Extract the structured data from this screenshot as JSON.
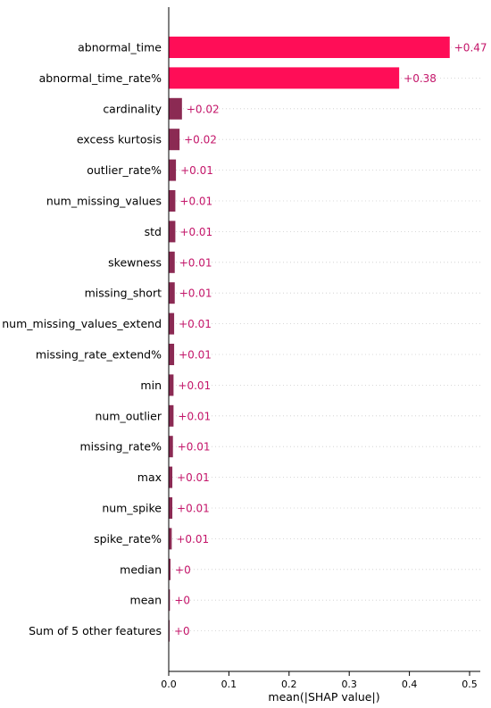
{
  "chart_data": {
    "type": "bar",
    "orientation": "horizontal",
    "categories": [
      "abnormal_time",
      "abnormal_time_rate%",
      "cardinality",
      "excess kurtosis",
      "outlier_rate%",
      "num_missing_values",
      "std",
      "skewness",
      "missing_short",
      "num_missing_values_extend",
      "missing_rate_extend%",
      "min",
      "num_outlier",
      "missing_rate%",
      "max",
      "num_spike",
      "spike_rate%",
      "median",
      "mean",
      "Sum of 5 other features"
    ],
    "values": [
      0.467,
      0.383,
      0.022,
      0.018,
      0.012,
      0.011,
      0.011,
      0.01,
      0.01,
      0.009,
      0.009,
      0.008,
      0.008,
      0.007,
      0.006,
      0.006,
      0.005,
      0.003,
      0.002,
      0.001
    ],
    "value_labels": [
      "+0.47",
      "+0.38",
      "+0.02",
      "+0.02",
      "+0.01",
      "+0.01",
      "+0.01",
      "+0.01",
      "+0.01",
      "+0.01",
      "+0.01",
      "+0.01",
      "+0.01",
      "+0.01",
      "+0.01",
      "+0.01",
      "+0.01",
      "+0",
      "+0",
      "+0"
    ],
    "xlabel": "mean(|SHAP value|)",
    "ylabel": "",
    "xlim": [
      0,
      0.52
    ],
    "xticks": [
      "0.0",
      "0.1",
      "0.2",
      "0.3",
      "0.4",
      "0.5"
    ],
    "xtick_values": [
      0,
      0.1,
      0.2,
      0.3,
      0.4,
      0.5
    ],
    "grid": "horizontal dashed row guides",
    "colors": {
      "bar_large": "#ff0d57",
      "bar_small": "#8b2a53",
      "label": "#c4166a",
      "grid": "#cccccc",
      "axis": "#000000"
    }
  }
}
